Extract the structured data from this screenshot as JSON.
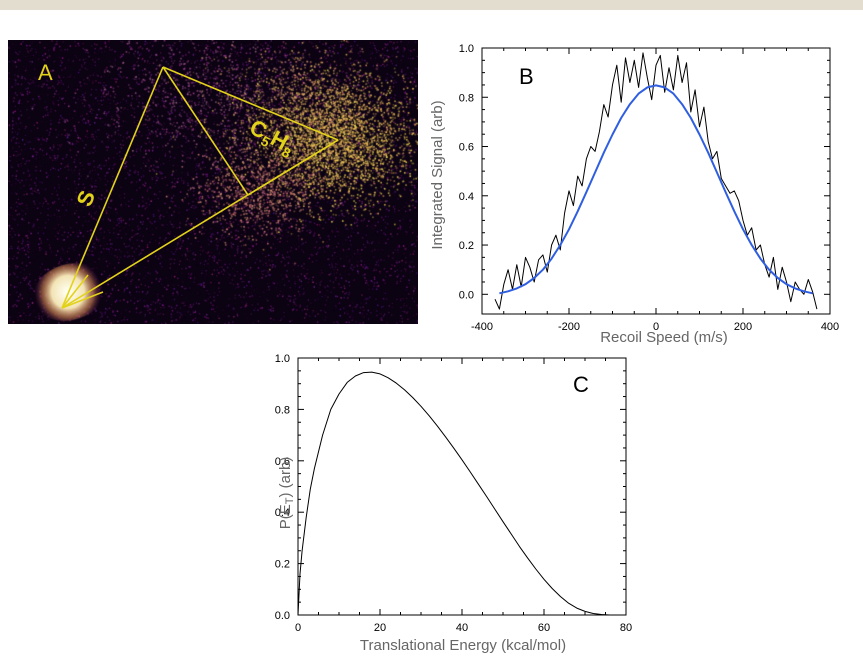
{
  "image": {
    "label": "A",
    "side_label": "S",
    "molecule_label": {
      "main": "C",
      "sub1": "5",
      "mid": "H",
      "sub2": "8"
    },
    "colors": {
      "background": "#0b0212",
      "lines": "#e2d21a",
      "hot": "#fff2c0",
      "cool": "#7b1f8c"
    }
  },
  "chart_data": [
    {
      "type": "line",
      "panel_label": "B",
      "xlabel": "Recoil Speed (m/s)",
      "ylabel": "Integrated Signal (arb)",
      "xlim": [
        -400,
        400
      ],
      "ylim": [
        -0.08,
        1.0
      ],
      "x_ticks": [
        "-400",
        "-200",
        "0",
        "200",
        "400"
      ],
      "y_ticks": [
        "0.0",
        "0.2",
        "0.4",
        "0.6",
        "0.8",
        "1.0"
      ],
      "series": [
        {
          "color": "#000000",
          "x": [
            -370,
            -360,
            -350,
            -340,
            -330,
            -320,
            -310,
            -300,
            -290,
            -280,
            -270,
            -260,
            -250,
            -240,
            -230,
            -220,
            -210,
            -200,
            -190,
            -180,
            -170,
            -160,
            -150,
            -140,
            -130,
            -120,
            -110,
            -100,
            -90,
            -80,
            -70,
            -60,
            -50,
            -40,
            -30,
            -20,
            -10,
            0,
            10,
            20,
            30,
            40,
            50,
            60,
            70,
            80,
            90,
            100,
            110,
            120,
            130,
            140,
            150,
            160,
            170,
            180,
            190,
            200,
            210,
            220,
            230,
            240,
            250,
            260,
            270,
            280,
            290,
            300,
            310,
            320,
            330,
            340,
            350,
            360,
            370
          ],
          "y": [
            -0.02,
            -0.06,
            0.04,
            0.1,
            0.02,
            0.12,
            0.03,
            0.15,
            0.11,
            0.05,
            0.14,
            0.16,
            0.09,
            0.2,
            0.24,
            0.18,
            0.33,
            0.42,
            0.36,
            0.48,
            0.44,
            0.55,
            0.6,
            0.58,
            0.66,
            0.77,
            0.72,
            0.85,
            0.93,
            0.78,
            0.96,
            0.86,
            0.95,
            0.84,
            0.98,
            0.88,
            0.79,
            0.93,
            0.97,
            0.82,
            0.92,
            0.83,
            0.97,
            0.86,
            0.94,
            0.74,
            0.83,
            0.68,
            0.76,
            0.62,
            0.55,
            0.58,
            0.47,
            0.44,
            0.41,
            0.42,
            0.38,
            0.3,
            0.24,
            0.27,
            0.18,
            0.2,
            0.12,
            0.07,
            0.15,
            0.02,
            0.11,
            0.05,
            -0.03,
            0.05,
            0.02,
            0.0,
            0.06,
            0.01,
            -0.06
          ]
        },
        {
          "color": "#2f5fe0",
          "x": [
            -360,
            -340,
            -320,
            -300,
            -280,
            -260,
            -240,
            -220,
            -200,
            -180,
            -160,
            -140,
            -120,
            -100,
            -80,
            -60,
            -40,
            -20,
            0,
            20,
            40,
            60,
            80,
            100,
            120,
            140,
            160,
            180,
            200,
            220,
            240,
            260,
            280,
            300,
            320,
            340,
            360
          ],
          "y": [
            0.004,
            0.012,
            0.024,
            0.041,
            0.066,
            0.1,
            0.145,
            0.2,
            0.264,
            0.337,
            0.415,
            0.495,
            0.575,
            0.649,
            0.716,
            0.772,
            0.815,
            0.84,
            0.848,
            0.84,
            0.815,
            0.772,
            0.716,
            0.649,
            0.575,
            0.495,
            0.415,
            0.337,
            0.264,
            0.2,
            0.145,
            0.1,
            0.066,
            0.041,
            0.024,
            0.012,
            0.004
          ]
        }
      ]
    },
    {
      "type": "line",
      "panel_label": "C",
      "xlabel": "Translational Energy (kcal/mol)",
      "ylabel_main": "P(E",
      "ylabel_sub": "T",
      "ylabel_tail": ") (arb)",
      "xlim": [
        0,
        80
      ],
      "ylim": [
        0,
        1.0
      ],
      "x_ticks": [
        "0",
        "20",
        "40",
        "60",
        "80"
      ],
      "y_ticks": [
        "0.0",
        "0.2",
        "0.4",
        "0.6",
        "0.8",
        "1.0"
      ],
      "series": [
        {
          "color": "#000000",
          "x": [
            0,
            0.5,
            1,
            2,
            3,
            4,
            6,
            8,
            10,
            12,
            14,
            16,
            18,
            20,
            22,
            24,
            26,
            28,
            30,
            32,
            34,
            36,
            38,
            40,
            42,
            44,
            46,
            48,
            50,
            52,
            54,
            56,
            58,
            60,
            62,
            64,
            66,
            68,
            70,
            72,
            74,
            76,
            77
          ],
          "y": [
            0.0,
            0.16,
            0.25,
            0.38,
            0.49,
            0.57,
            0.7,
            0.8,
            0.86,
            0.905,
            0.93,
            0.943,
            0.945,
            0.938,
            0.923,
            0.902,
            0.876,
            0.846,
            0.812,
            0.775,
            0.735,
            0.693,
            0.649,
            0.604,
            0.557,
            0.509,
            0.461,
            0.412,
            0.363,
            0.315,
            0.267,
            0.222,
            0.179,
            0.139,
            0.103,
            0.072,
            0.046,
            0.027,
            0.014,
            0.006,
            0.002,
            0.0,
            0.0
          ]
        }
      ]
    }
  ]
}
